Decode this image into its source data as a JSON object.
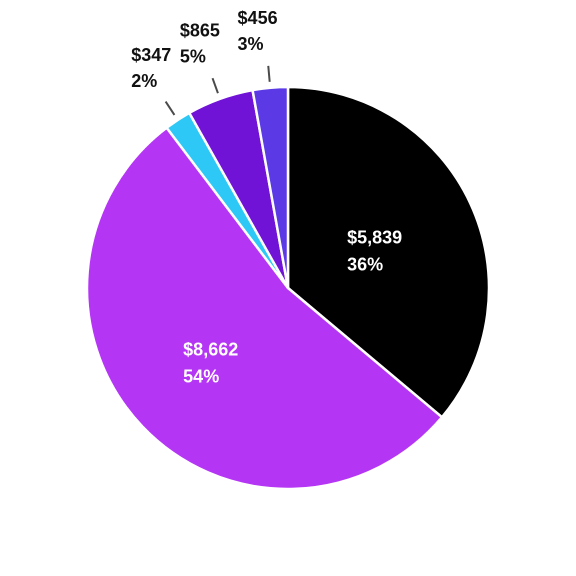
{
  "chart_data": {
    "type": "pie",
    "title": "",
    "slices": [
      {
        "value": 5839,
        "value_label": "$5,839",
        "percent_label": "36%",
        "color": "#000000",
        "label_position": "inside"
      },
      {
        "value": 8662,
        "value_label": "$8,662",
        "percent_label": "54%",
        "color": "#b535f5",
        "label_position": "inside"
      },
      {
        "value": 347,
        "value_label": "$347",
        "percent_label": "2%",
        "color": "#2dc8f5",
        "label_position": "outside"
      },
      {
        "value": 865,
        "value_label": "$865",
        "percent_label": "5%",
        "color": "#7013d6",
        "label_position": "outside"
      },
      {
        "value": 456,
        "value_label": "$456",
        "percent_label": "3%",
        "color": "#5b3ae6",
        "label_position": "outside"
      }
    ],
    "start_angle": "top",
    "direction": "clockwise",
    "legend": "none"
  }
}
